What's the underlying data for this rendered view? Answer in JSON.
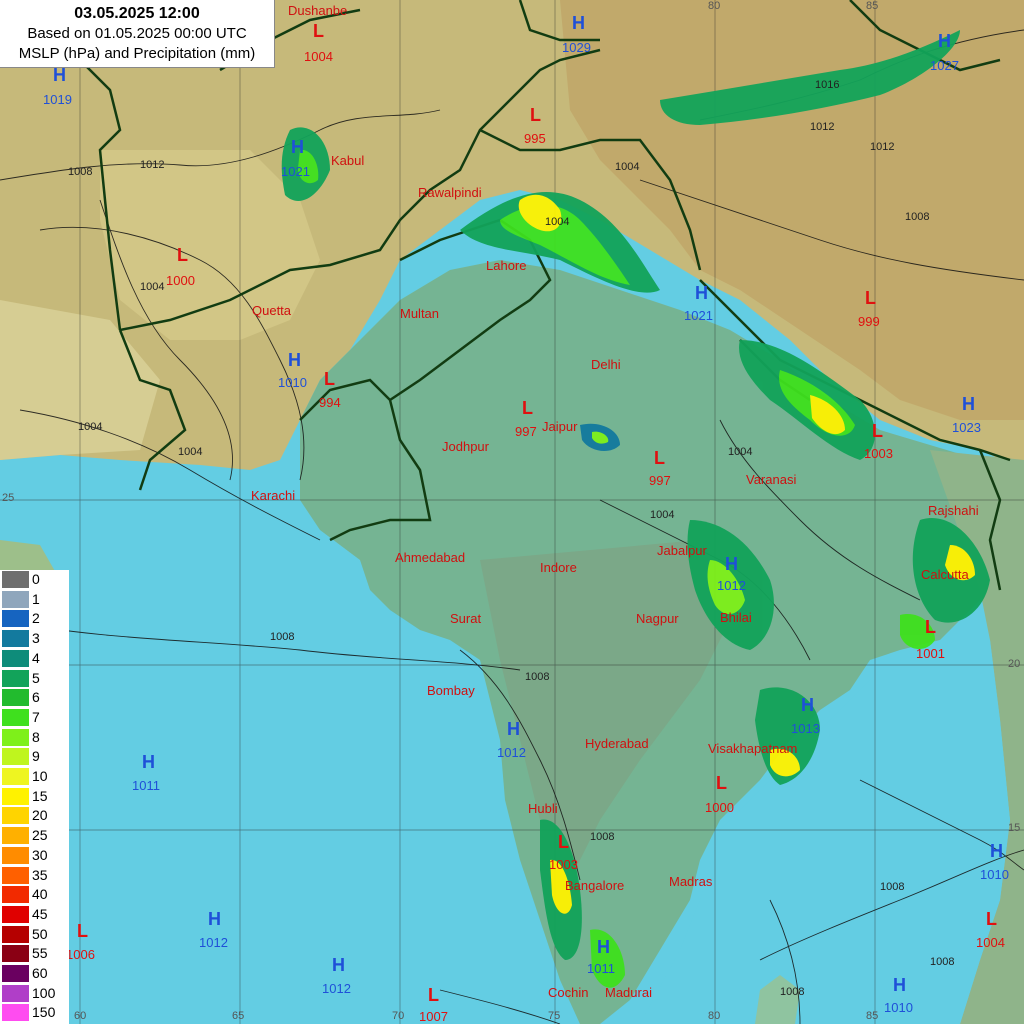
{
  "title": {
    "line1": "03.05.2025 12:00",
    "line2": "Based on 01.05.2025 00:00 UTC",
    "line3": "MSLP (hPa) and Precipitation (mm)"
  },
  "legend": [
    {
      "label": "0",
      "color": "#6e6e6e"
    },
    {
      "label": "1",
      "color": "#8fa6bc"
    },
    {
      "label": "2",
      "color": "#1664c0"
    },
    {
      "label": "3",
      "color": "#137a9e"
    },
    {
      "label": "4",
      "color": "#0e8c7a"
    },
    {
      "label": "5",
      "color": "#12a35a"
    },
    {
      "label": "6",
      "color": "#22bb2e"
    },
    {
      "label": "7",
      "color": "#3fe01e"
    },
    {
      "label": "8",
      "color": "#7ef01a"
    },
    {
      "label": "9",
      "color": "#bff51e"
    },
    {
      "label": "10",
      "color": "#eef521"
    },
    {
      "label": "15",
      "color": "#fff200"
    },
    {
      "label": "20",
      "color": "#ffd400"
    },
    {
      "label": "25",
      "color": "#ffb000"
    },
    {
      "label": "30",
      "color": "#ff8c00"
    },
    {
      "label": "35",
      "color": "#ff6000"
    },
    {
      "label": "40",
      "color": "#f22a00"
    },
    {
      "label": "45",
      "color": "#e00000"
    },
    {
      "label": "50",
      "color": "#b50000"
    },
    {
      "label": "55",
      "color": "#8a0014"
    },
    {
      "label": "60",
      "color": "#6a0060"
    },
    {
      "label": "100",
      "color": "#b03ec8"
    },
    {
      "label": "150",
      "color": "#ff4cf0"
    }
  ],
  "cities": [
    {
      "name": "Dushanbe"
    },
    {
      "name": "Kabul"
    },
    {
      "name": "Rawalpindi"
    },
    {
      "name": "Lahore"
    },
    {
      "name": "Quetta"
    },
    {
      "name": "Multan"
    },
    {
      "name": "Delhi"
    },
    {
      "name": "Jaipur"
    },
    {
      "name": "Jodhpur"
    },
    {
      "name": "Karachi"
    },
    {
      "name": "Varanasi"
    },
    {
      "name": "Rajshahi"
    },
    {
      "name": "Ahmedabad"
    },
    {
      "name": "Indore"
    },
    {
      "name": "Jabalpur"
    },
    {
      "name": "Calcutta"
    },
    {
      "name": "Surat"
    },
    {
      "name": "Nagpur"
    },
    {
      "name": "Bhilai"
    },
    {
      "name": "Bombay"
    },
    {
      "name": "Hyderabad"
    },
    {
      "name": "Visakhapatnam"
    },
    {
      "name": "Hubli"
    },
    {
      "name": "Bangalore"
    },
    {
      "name": "Madras"
    },
    {
      "name": "Cochin"
    },
    {
      "name": "Madurai"
    }
  ],
  "pressure_centers": [
    {
      "type": "L",
      "value": "1004"
    },
    {
      "type": "H",
      "value": "1029"
    },
    {
      "type": "H",
      "value": "1027"
    },
    {
      "type": "H",
      "value": "1019"
    },
    {
      "type": "L",
      "value": "995"
    },
    {
      "type": "H",
      "value": "1021"
    },
    {
      "type": "L",
      "value": "1000"
    },
    {
      "type": "H",
      "value": "1021"
    },
    {
      "type": "L",
      "value": "999"
    },
    {
      "type": "H",
      "value": "1010"
    },
    {
      "type": "L",
      "value": "994"
    },
    {
      "type": "L",
      "value": "997"
    },
    {
      "type": "L",
      "value": "997"
    },
    {
      "type": "L",
      "value": "1003"
    },
    {
      "type": "H",
      "value": "1023"
    },
    {
      "type": "H",
      "value": "1012"
    },
    {
      "type": "L",
      "value": "1001"
    },
    {
      "type": "H",
      "value": "1012"
    },
    {
      "type": "H",
      "value": "1013"
    },
    {
      "type": "H",
      "value": "1011"
    },
    {
      "type": "L",
      "value": "1000"
    },
    {
      "type": "L",
      "value": "1003"
    },
    {
      "type": "H",
      "value": "1010"
    },
    {
      "type": "L",
      "value": "1006"
    },
    {
      "type": "H",
      "value": "1012"
    },
    {
      "type": "H",
      "value": "1012"
    },
    {
      "type": "H",
      "value": "1011"
    },
    {
      "type": "L",
      "value": "1007"
    },
    {
      "type": "H",
      "value": "1010"
    },
    {
      "type": "L",
      "value": "1004"
    }
  ],
  "isobar_labels": [
    "1012",
    "1008",
    "1004",
    "1004",
    "1004",
    "1016",
    "1012",
    "1012",
    "1008",
    "1004",
    "1004",
    "1004",
    "1004",
    "1008",
    "1008",
    "1008",
    "1008",
    "1008",
    "1008"
  ],
  "grid_ticks": [
    "80",
    "85",
    "25",
    "20",
    "15",
    "60",
    "65",
    "70",
    "75",
    "80",
    "85"
  ]
}
